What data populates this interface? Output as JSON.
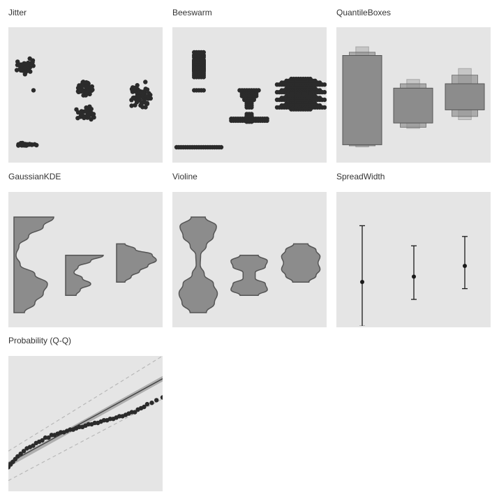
{
  "colors": {
    "background": "#e5e5e5",
    "dots": "#2b2b2b",
    "fill": "#8c8c8c",
    "stroke": "#555555",
    "line": "#1a1a1a"
  },
  "panels": {
    "jitter": {
      "title": "Jitter"
    },
    "beeswarm": {
      "title": "Beeswarm"
    },
    "quantile": {
      "title": "QuantileBoxes"
    },
    "kde": {
      "title": "GaussianKDE"
    },
    "violine": {
      "title": "Violine"
    },
    "spread": {
      "title": "SpreadWidth"
    },
    "qq": {
      "title": "Probability (Q-Q)"
    }
  },
  "chart_data": [
    {
      "type": "scatter",
      "subtype": "jitter",
      "groups": [
        {
          "x": 1,
          "clusters": [
            {
              "center": 0.85,
              "spread": 0.1,
              "n": 45
            },
            {
              "center": 0.03,
              "spread": 0.02,
              "n": 30
            }
          ],
          "outliers": [
            0.6
          ]
        },
        {
          "x": 2,
          "clusters": [
            {
              "center": 0.62,
              "spread": 0.1,
              "n": 50
            },
            {
              "center": 0.35,
              "spread": 0.1,
              "n": 35
            }
          ]
        },
        {
          "x": 3,
          "clusters": [
            {
              "center": 0.55,
              "spread": 0.18,
              "n": 70
            }
          ]
        }
      ],
      "ylim": [
        0,
        1
      ],
      "grid": false,
      "legend": false
    },
    {
      "type": "scatter",
      "subtype": "beeswarm",
      "groups": [
        {
          "x": 1,
          "values": [
            0.8,
            0.82,
            0.84,
            0.86,
            0.88,
            0.9,
            0.92,
            0.95,
            0.97,
            1.0,
            0.85,
            0.87,
            0.83,
            0.81,
            0.89,
            0.91,
            0.6,
            0.78,
            0.76,
            0.74
          ]
        },
        {
          "x": 2,
          "values": [
            0.6,
            0.58,
            0.56,
            0.54,
            0.52,
            0.5,
            0.48,
            0.46,
            0.44,
            0.42,
            0.35,
            0.33,
            0.32,
            0.31,
            0.3,
            0.3,
            0.29,
            0.28,
            0.27
          ]
        },
        {
          "x": 3,
          "values": [
            0.72,
            0.7,
            0.68,
            0.66,
            0.64,
            0.62,
            0.6,
            0.58,
            0.56,
            0.54,
            0.52,
            0.5,
            0.48,
            0.46,
            0.44,
            0.42,
            0.4
          ]
        }
      ],
      "ylim": [
        0,
        1
      ],
      "grid": false,
      "legend": false
    },
    {
      "type": "boxen",
      "subtype": "quantile-boxes",
      "groups": [
        {
          "x": 1,
          "levels": [
            [
              0.1,
              0.92
            ],
            [
              0.09,
              0.95
            ],
            [
              0.08,
              1.0
            ]
          ]
        },
        {
          "x": 2,
          "levels": [
            [
              0.3,
              0.62
            ],
            [
              0.26,
              0.66
            ],
            [
              0.25,
              0.7
            ]
          ]
        },
        {
          "x": 3,
          "levels": [
            [
              0.42,
              0.66
            ],
            [
              0.36,
              0.74
            ],
            [
              0.33,
              0.8
            ]
          ]
        }
      ],
      "ylim": [
        0,
        1.05
      ],
      "grid": false,
      "legend": false
    },
    {
      "type": "area",
      "subtype": "half-kde",
      "groups": [
        {
          "x": 1,
          "ymin": 0.0,
          "ymax": 1.0,
          "widths": [
            0.95,
            0.7,
            0.35,
            0.12,
            0.05,
            0.15,
            0.5,
            0.8,
            0.7,
            0.5,
            0.25
          ]
        },
        {
          "x": 2,
          "ymin": 0.18,
          "ymax": 0.6,
          "widths": [
            0.9,
            0.6,
            0.3,
            0.2,
            0.4,
            0.6,
            0.35,
            0.25
          ]
        },
        {
          "x": 3,
          "ymin": 0.32,
          "ymax": 0.72,
          "widths": [
            0.2,
            0.45,
            0.85,
            0.95,
            0.75,
            0.55,
            0.35,
            0.2
          ]
        }
      ],
      "ylim": [
        0,
        1
      ],
      "grid": false,
      "legend": false
    },
    {
      "type": "area",
      "subtype": "violin",
      "groups": [
        {
          "x": 1,
          "ymin": 0.0,
          "ymax": 1.0,
          "widths": [
            0.35,
            0.9,
            0.75,
            0.4,
            0.12,
            0.1,
            0.3,
            0.75,
            0.95,
            0.8,
            0.4
          ]
        },
        {
          "x": 2,
          "ymin": 0.18,
          "ymax": 0.6,
          "widths": [
            0.45,
            0.9,
            0.8,
            0.3,
            0.3,
            0.8,
            0.9,
            0.45
          ]
        },
        {
          "x": 3,
          "ymin": 0.32,
          "ymax": 0.72,
          "widths": [
            0.35,
            0.75,
            0.95,
            0.85,
            0.95,
            0.75,
            0.4
          ]
        }
      ],
      "ylim": [
        0,
        1
      ],
      "grid": false,
      "legend": false
    },
    {
      "type": "errorbar",
      "subtype": "spread-width",
      "groups": [
        {
          "x": 1,
          "center": 0.38,
          "low": 0.05,
          "high": 0.8
        },
        {
          "x": 2,
          "center": 0.42,
          "low": 0.25,
          "high": 0.65
        },
        {
          "x": 3,
          "center": 0.5,
          "low": 0.33,
          "high": 0.72
        }
      ],
      "ylim": [
        0,
        1
      ],
      "grid": false,
      "legend": false
    },
    {
      "type": "scatter",
      "subtype": "probability-qq",
      "x": [
        0,
        0.015,
        0.03,
        0.045,
        0.06,
        0.08,
        0.1,
        0.12,
        0.14,
        0.16,
        0.18,
        0.2,
        0.22,
        0.24,
        0.26,
        0.28,
        0.3,
        0.32,
        0.34,
        0.36,
        0.38,
        0.4,
        0.42,
        0.44,
        0.46,
        0.48,
        0.5,
        0.52,
        0.54,
        0.56,
        0.58,
        0.6,
        0.62,
        0.64,
        0.66,
        0.68,
        0.7,
        0.72,
        0.74,
        0.76,
        0.78,
        0.8,
        0.82,
        0.84,
        0.86,
        0.88,
        0.9,
        0.93,
        0.96,
        1.0
      ],
      "y": [
        0.17,
        0.19,
        0.21,
        0.23,
        0.25,
        0.27,
        0.29,
        0.31,
        0.32,
        0.33,
        0.35,
        0.36,
        0.37,
        0.39,
        0.39,
        0.41,
        0.41,
        0.42,
        0.43,
        0.43,
        0.44,
        0.45,
        0.45,
        0.46,
        0.47,
        0.47,
        0.48,
        0.49,
        0.49,
        0.5,
        0.5,
        0.51,
        0.52,
        0.52,
        0.53,
        0.53,
        0.54,
        0.55,
        0.55,
        0.56,
        0.57,
        0.58,
        0.58,
        0.6,
        0.61,
        0.62,
        0.64,
        0.65,
        0.67,
        0.69
      ],
      "fit_line": [
        [
          0,
          0.2
        ],
        [
          1,
          0.83
        ]
      ],
      "fit_band": [
        [
          0,
          0.17,
          0.21
        ],
        [
          1,
          0.81,
          0.85
        ]
      ],
      "conf_upper": [
        [
          0,
          0.29
        ],
        [
          1,
          1.0
        ]
      ],
      "conf_lower": [
        [
          0,
          0.07
        ],
        [
          1,
          0.68
        ]
      ],
      "xlim": [
        0,
        1
      ],
      "ylim": [
        0,
        1
      ],
      "grid": false,
      "legend": false
    }
  ]
}
